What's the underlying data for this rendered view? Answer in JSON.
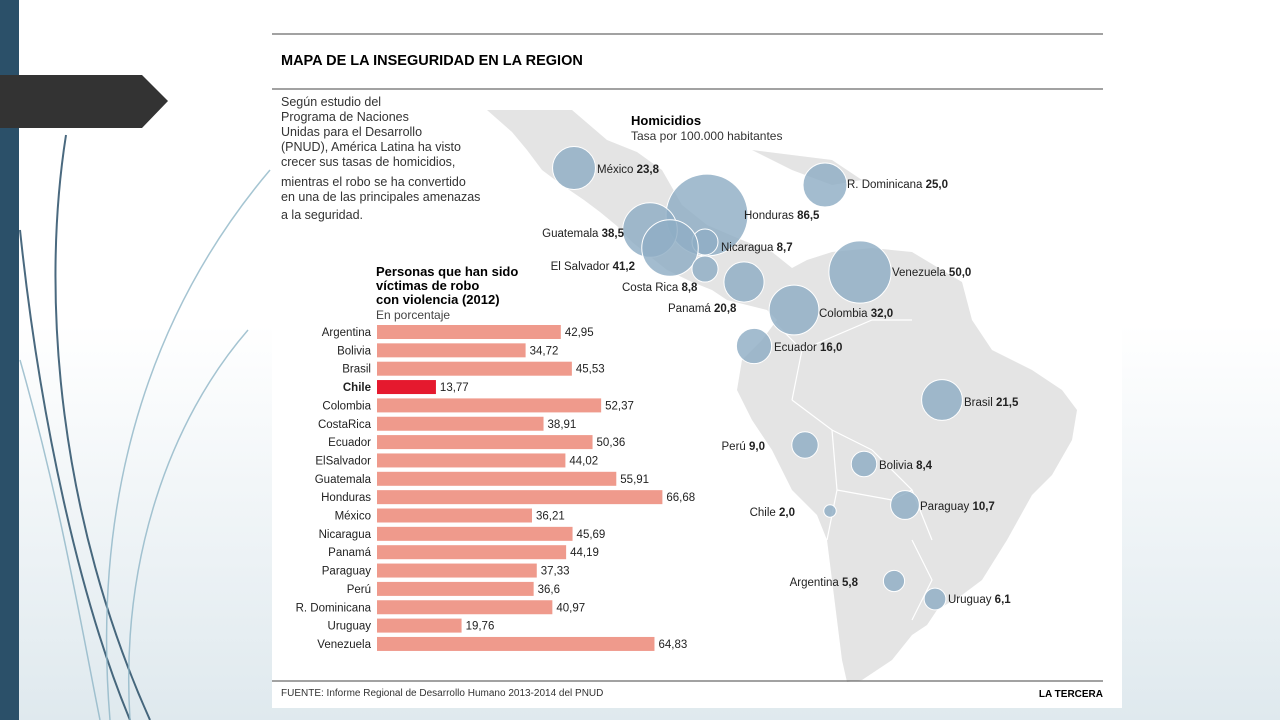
{
  "infographic": {
    "title": "MAPA DE LA INSEGURIDAD EN LA REGION",
    "intro_lines": [
      "Según estudio del",
      "Programa de Naciones",
      "Unidas para el Desarrollo",
      "(PNUD), América Latina ha visto",
      "crecer sus tasas de homicidios,",
      "mientras el robo se ha convertido",
      "en una de las principales amenazas",
      "a la seguridad."
    ],
    "source": "FUENTE: Informe Regional de Desarrollo Humano 2013-2014 del PNUD",
    "brand": "LA TERCERA"
  },
  "colors": {
    "bar": "#ef9a8c",
    "bar_highlight": "#e5192e",
    "bubble": "#8fadc4",
    "map_land": "#e4e4e4",
    "title_red": "#e0202c",
    "slide_dark": "#2b5069"
  },
  "chart_data": [
    {
      "type": "bar",
      "orientation": "horizontal",
      "title": "Personas que han sido víctimas de robo con violencia (2012)",
      "title_lines": [
        "Personas que han sido",
        "víctimas de robo",
        "con violencia (2012)"
      ],
      "subtitle": "En porcentaje",
      "highlight": "Chile",
      "categories": [
        "Argentina",
        "Bolivia",
        "Brasil",
        "Chile",
        "Colombia",
        "CostaRica",
        "Ecuador",
        "ElSalvador",
        "Guatemala",
        "Honduras",
        "México",
        "Nicaragua",
        "Panamá",
        "Paraguay",
        "Perú",
        "R. Dominicana",
        "Uruguay",
        "Venezuela"
      ],
      "values": [
        42.95,
        34.72,
        45.53,
        13.77,
        52.37,
        38.91,
        50.36,
        44.02,
        55.91,
        66.68,
        36.21,
        45.69,
        44.19,
        37.33,
        36.6,
        40.97,
        19.76,
        64.83
      ],
      "value_labels": [
        "42,95",
        "34,72",
        "45,53",
        "13,77",
        "52,37",
        "38,91",
        "50,36",
        "44,02",
        "55,91",
        "66,68",
        "36,21",
        "45,69",
        "44,19",
        "37,33",
        "36,6",
        "40,97",
        "19,76",
        "64,83"
      ]
    },
    {
      "type": "bubble-map",
      "title": "Homicidios",
      "subtitle": "Tasa por 100.000 habitantes",
      "points": [
        {
          "country": "México",
          "value": 23.8,
          "label": "23,8"
        },
        {
          "country": "R. Dominicana",
          "value": 25.0,
          "label": "25,0"
        },
        {
          "country": "Honduras",
          "value": 86.5,
          "label": "86,5"
        },
        {
          "country": "Guatemala",
          "value": 38.5,
          "label": "38,5"
        },
        {
          "country": "Nicaragua",
          "value": 8.7,
          "label": "8,7"
        },
        {
          "country": "El Salvador",
          "value": 41.2,
          "label": "41,2"
        },
        {
          "country": "Costa Rica",
          "value": 8.8,
          "label": "8,8"
        },
        {
          "country": "Panamá",
          "value": 20.8,
          "label": "20,8"
        },
        {
          "country": "Venezuela",
          "value": 50.0,
          "label": "50,0"
        },
        {
          "country": "Colombia",
          "value": 32.0,
          "label": "32,0"
        },
        {
          "country": "Ecuador",
          "value": 16.0,
          "label": "16,0"
        },
        {
          "country": "Brasil",
          "value": 21.5,
          "label": "21,5"
        },
        {
          "country": "Perú",
          "value": 9.0,
          "label": "9,0"
        },
        {
          "country": "Bolivia",
          "value": 8.4,
          "label": "8,4"
        },
        {
          "country": "Paraguay",
          "value": 10.7,
          "label": "10,7"
        },
        {
          "country": "Chile",
          "value": 2.0,
          "label": "2,0"
        },
        {
          "country": "Argentina",
          "value": 5.8,
          "label": "5,8"
        },
        {
          "country": "Uruguay",
          "value": 6.1,
          "label": "6,1"
        }
      ]
    }
  ]
}
